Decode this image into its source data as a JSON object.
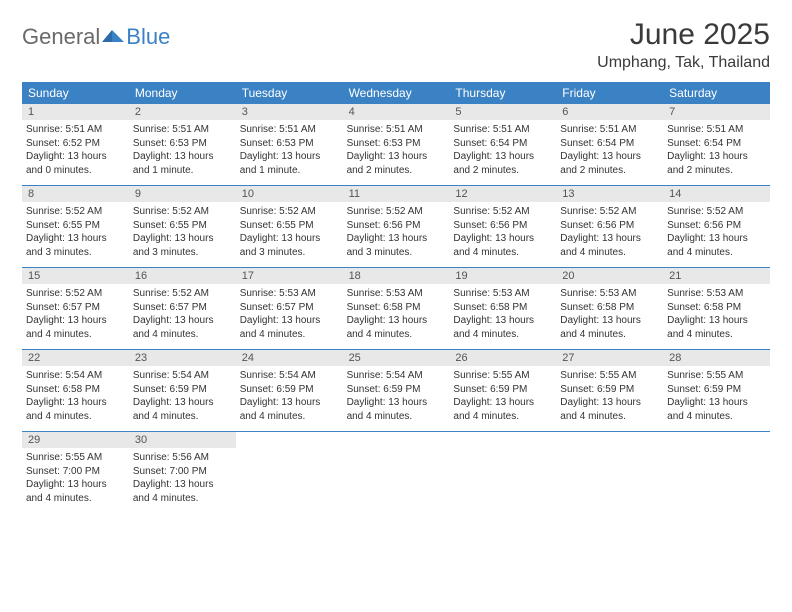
{
  "logo": {
    "general": "General",
    "blue": "Blue"
  },
  "title": "June 2025",
  "location": "Umphang, Tak, Thailand",
  "colors": {
    "header_bg": "#3b82c4",
    "header_text": "#ffffff",
    "daynum_bg": "#e8e8e8",
    "daynum_text": "#555555",
    "body_text": "#333333",
    "rule": "#3b82c4",
    "logo_gray": "#6a6a6a",
    "logo_blue": "#3b82c4"
  },
  "weekdays": [
    "Sunday",
    "Monday",
    "Tuesday",
    "Wednesday",
    "Thursday",
    "Friday",
    "Saturday"
  ],
  "weeks": [
    [
      {
        "n": "1",
        "sr": "5:51 AM",
        "ss": "6:52 PM",
        "dl": "13 hours and 0 minutes."
      },
      {
        "n": "2",
        "sr": "5:51 AM",
        "ss": "6:53 PM",
        "dl": "13 hours and 1 minute."
      },
      {
        "n": "3",
        "sr": "5:51 AM",
        "ss": "6:53 PM",
        "dl": "13 hours and 1 minute."
      },
      {
        "n": "4",
        "sr": "5:51 AM",
        "ss": "6:53 PM",
        "dl": "13 hours and 2 minutes."
      },
      {
        "n": "5",
        "sr": "5:51 AM",
        "ss": "6:54 PM",
        "dl": "13 hours and 2 minutes."
      },
      {
        "n": "6",
        "sr": "5:51 AM",
        "ss": "6:54 PM",
        "dl": "13 hours and 2 minutes."
      },
      {
        "n": "7",
        "sr": "5:51 AM",
        "ss": "6:54 PM",
        "dl": "13 hours and 2 minutes."
      }
    ],
    [
      {
        "n": "8",
        "sr": "5:52 AM",
        "ss": "6:55 PM",
        "dl": "13 hours and 3 minutes."
      },
      {
        "n": "9",
        "sr": "5:52 AM",
        "ss": "6:55 PM",
        "dl": "13 hours and 3 minutes."
      },
      {
        "n": "10",
        "sr": "5:52 AM",
        "ss": "6:55 PM",
        "dl": "13 hours and 3 minutes."
      },
      {
        "n": "11",
        "sr": "5:52 AM",
        "ss": "6:56 PM",
        "dl": "13 hours and 3 minutes."
      },
      {
        "n": "12",
        "sr": "5:52 AM",
        "ss": "6:56 PM",
        "dl": "13 hours and 4 minutes."
      },
      {
        "n": "13",
        "sr": "5:52 AM",
        "ss": "6:56 PM",
        "dl": "13 hours and 4 minutes."
      },
      {
        "n": "14",
        "sr": "5:52 AM",
        "ss": "6:56 PM",
        "dl": "13 hours and 4 minutes."
      }
    ],
    [
      {
        "n": "15",
        "sr": "5:52 AM",
        "ss": "6:57 PM",
        "dl": "13 hours and 4 minutes."
      },
      {
        "n": "16",
        "sr": "5:52 AM",
        "ss": "6:57 PM",
        "dl": "13 hours and 4 minutes."
      },
      {
        "n": "17",
        "sr": "5:53 AM",
        "ss": "6:57 PM",
        "dl": "13 hours and 4 minutes."
      },
      {
        "n": "18",
        "sr": "5:53 AM",
        "ss": "6:58 PM",
        "dl": "13 hours and 4 minutes."
      },
      {
        "n": "19",
        "sr": "5:53 AM",
        "ss": "6:58 PM",
        "dl": "13 hours and 4 minutes."
      },
      {
        "n": "20",
        "sr": "5:53 AM",
        "ss": "6:58 PM",
        "dl": "13 hours and 4 minutes."
      },
      {
        "n": "21",
        "sr": "5:53 AM",
        "ss": "6:58 PM",
        "dl": "13 hours and 4 minutes."
      }
    ],
    [
      {
        "n": "22",
        "sr": "5:54 AM",
        "ss": "6:58 PM",
        "dl": "13 hours and 4 minutes."
      },
      {
        "n": "23",
        "sr": "5:54 AM",
        "ss": "6:59 PM",
        "dl": "13 hours and 4 minutes."
      },
      {
        "n": "24",
        "sr": "5:54 AM",
        "ss": "6:59 PM",
        "dl": "13 hours and 4 minutes."
      },
      {
        "n": "25",
        "sr": "5:54 AM",
        "ss": "6:59 PM",
        "dl": "13 hours and 4 minutes."
      },
      {
        "n": "26",
        "sr": "5:55 AM",
        "ss": "6:59 PM",
        "dl": "13 hours and 4 minutes."
      },
      {
        "n": "27",
        "sr": "5:55 AM",
        "ss": "6:59 PM",
        "dl": "13 hours and 4 minutes."
      },
      {
        "n": "28",
        "sr": "5:55 AM",
        "ss": "6:59 PM",
        "dl": "13 hours and 4 minutes."
      }
    ],
    [
      {
        "n": "29",
        "sr": "5:55 AM",
        "ss": "7:00 PM",
        "dl": "13 hours and 4 minutes."
      },
      {
        "n": "30",
        "sr": "5:56 AM",
        "ss": "7:00 PM",
        "dl": "13 hours and 4 minutes."
      },
      null,
      null,
      null,
      null,
      null
    ]
  ],
  "labels": {
    "sunrise": "Sunrise:",
    "sunset": "Sunset:",
    "daylight": "Daylight:"
  }
}
